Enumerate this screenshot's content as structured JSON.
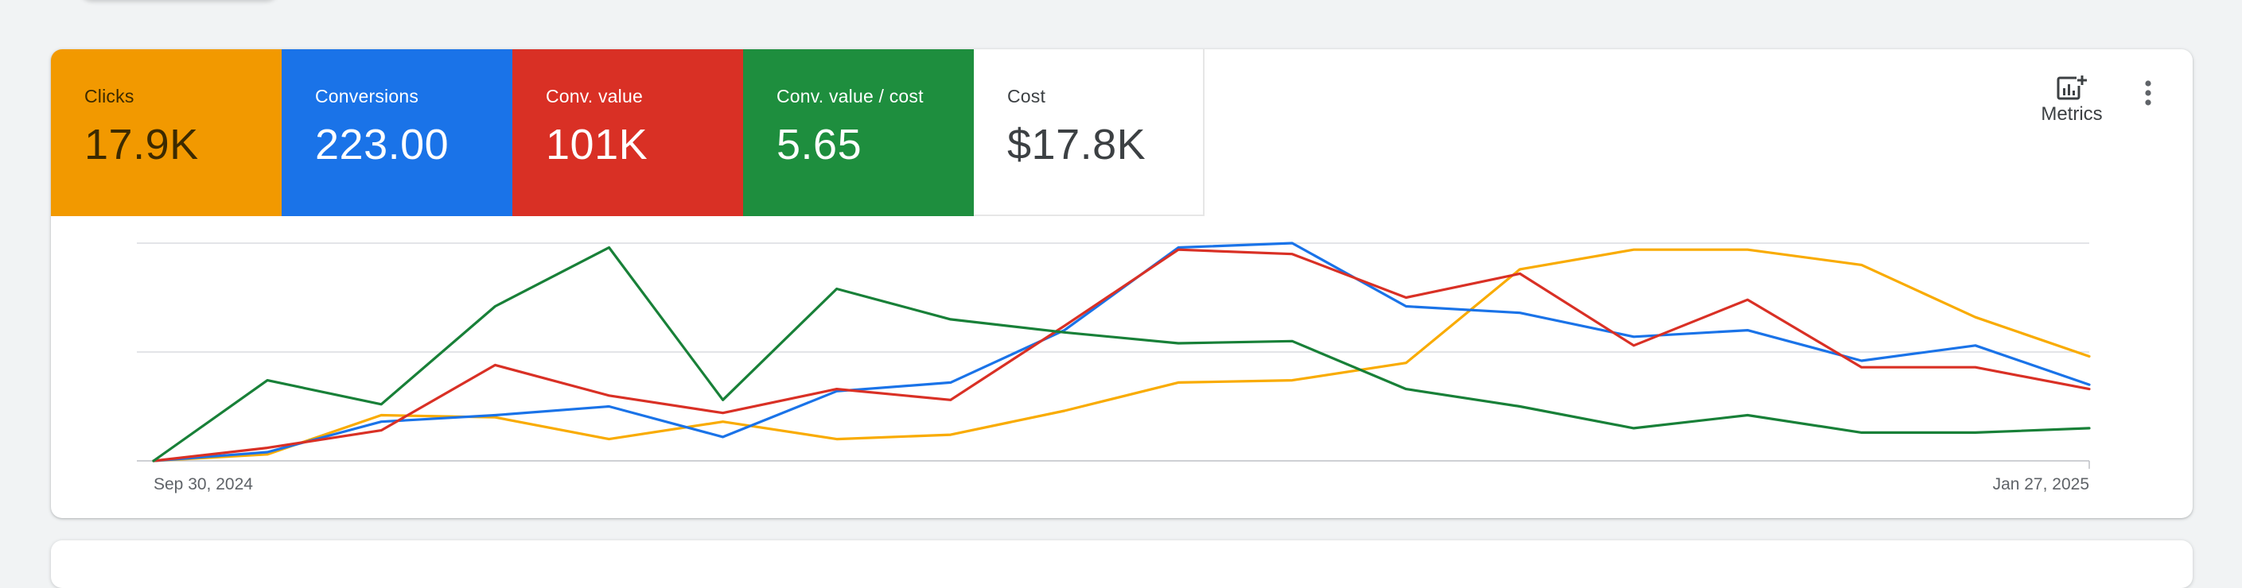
{
  "scorecards": [
    {
      "label": "Clicks",
      "value": "17.9K",
      "bg": "#f29900",
      "fg": "#3c2a00"
    },
    {
      "label": "Conversions",
      "value": "223.00",
      "bg": "#1a73e8",
      "fg": "#ffffff"
    },
    {
      "label": "Conv. value",
      "value": "101K",
      "bg": "#d93025",
      "fg": "#ffffff"
    },
    {
      "label": "Conv. value / cost",
      "value": "5.65",
      "bg": "#1e8e3e",
      "fg": "#ffffff"
    },
    {
      "label": "Cost",
      "value": "$17.8K",
      "bg": "#ffffff",
      "fg": "#3c4043"
    }
  ],
  "toolbar": {
    "metrics_label": "Metrics",
    "metrics_icon": "add-chart-icon",
    "more_icon": "more-vert-icon"
  },
  "chart_data": {
    "type": "line",
    "x_start_label": "Sep 30, 2024",
    "x_end_label": "Jan 27, 2025",
    "y_normalized": true,
    "grid": true,
    "series": [
      {
        "metric": "Clicks",
        "color": "#f9ab00",
        "values": [
          0.0,
          0.03,
          0.21,
          0.2,
          0.1,
          0.18,
          0.1,
          0.12,
          0.23,
          0.36,
          0.37,
          0.45,
          0.88,
          0.97,
          0.97,
          0.9,
          0.66,
          0.48
        ]
      },
      {
        "metric": "Conversions",
        "color": "#1a73e8",
        "values": [
          0.0,
          0.04,
          0.18,
          0.21,
          0.25,
          0.11,
          0.32,
          0.36,
          0.6,
          0.98,
          1.0,
          0.71,
          0.68,
          0.57,
          0.6,
          0.46,
          0.53,
          0.35
        ]
      },
      {
        "metric": "Conv. value",
        "color": "#d93025",
        "values": [
          0.0,
          0.06,
          0.14,
          0.44,
          0.3,
          0.22,
          0.33,
          0.28,
          0.62,
          0.97,
          0.95,
          0.75,
          0.86,
          0.53,
          0.74,
          0.43,
          0.43,
          0.33
        ]
      },
      {
        "metric": "Conv. value / cost",
        "color": "#188038",
        "values": [
          0.0,
          0.37,
          0.26,
          0.71,
          0.98,
          0.28,
          0.79,
          0.65,
          0.59,
          0.54,
          0.55,
          0.33,
          0.25,
          0.15,
          0.21,
          0.13,
          0.13,
          0.15
        ]
      }
    ]
  }
}
